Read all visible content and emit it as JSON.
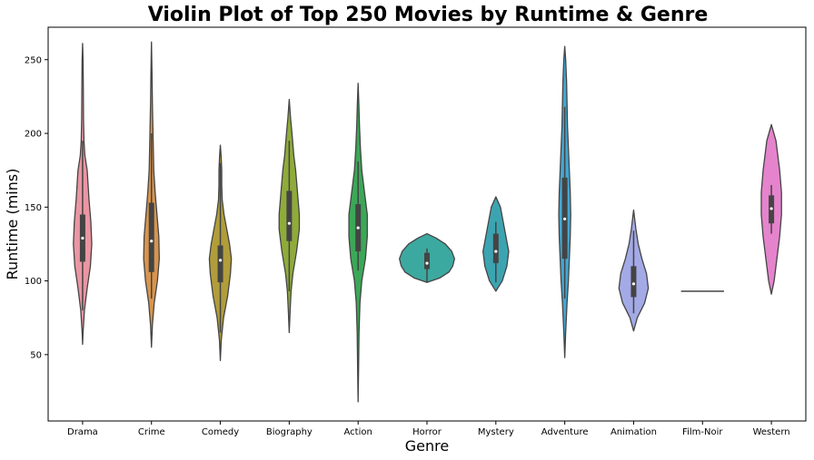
{
  "chart_data": {
    "type": "violin",
    "title": "Violin Plot of Top 250 Movies by Runtime & Genre",
    "xlabel": "Genre",
    "ylabel": "Runtime (mins)",
    "ylim": [
      5,
      272
    ],
    "yticks": [
      50,
      100,
      150,
      200,
      250
    ],
    "grid": false,
    "categories": [
      "Drama",
      "Crime",
      "Comedy",
      "Biography",
      "Action",
      "Horror",
      "Mystery",
      "Adventure",
      "Animation",
      "Film-Noir",
      "Western"
    ],
    "colors": [
      "#ea96a3",
      "#d8944e",
      "#b19d3a",
      "#8fab3b",
      "#3ba857",
      "#3ca9a0",
      "#3ca4b1",
      "#43a7d1",
      "#a3aae6",
      "#c3a2e8",
      "#e583cd"
    ],
    "violins": [
      {
        "genre": "Drama",
        "min": 57,
        "max": 261,
        "q1": 113,
        "median": 129,
        "q3": 145,
        "whisker_low": 80,
        "whisker_high": 195,
        "density": [
          [
            57,
            0
          ],
          [
            65,
            0.5
          ],
          [
            80,
            2
          ],
          [
            95,
            5
          ],
          [
            110,
            8.5
          ],
          [
            125,
            10
          ],
          [
            140,
            9
          ],
          [
            155,
            7
          ],
          [
            165,
            6
          ],
          [
            175,
            5
          ],
          [
            185,
            2.5
          ],
          [
            195,
            1.5
          ],
          [
            210,
            1
          ],
          [
            230,
            0.8
          ],
          [
            250,
            0.5
          ],
          [
            261,
            0
          ]
        ]
      },
      {
        "genre": "Crime",
        "min": 55,
        "max": 262,
        "q1": 106,
        "median": 127,
        "q3": 153,
        "whisker_low": 88,
        "whisker_high": 200,
        "density": [
          [
            55,
            0
          ],
          [
            70,
            1
          ],
          [
            85,
            3
          ],
          [
            100,
            6.5
          ],
          [
            115,
            8.5
          ],
          [
            130,
            8
          ],
          [
            145,
            6
          ],
          [
            160,
            4
          ],
          [
            175,
            2.5
          ],
          [
            190,
            2
          ],
          [
            205,
            1.5
          ],
          [
            220,
            1
          ],
          [
            240,
            0.6
          ],
          [
            262,
            0
          ]
        ]
      },
      {
        "genre": "Comedy",
        "min": 46,
        "max": 192,
        "q1": 99,
        "median": 114,
        "q3": 124,
        "whisker_low": 65,
        "whisker_high": 180,
        "density": [
          [
            46,
            0
          ],
          [
            60,
            1
          ],
          [
            75,
            3.5
          ],
          [
            90,
            8
          ],
          [
            105,
            11
          ],
          [
            115,
            12
          ],
          [
            125,
            10
          ],
          [
            135,
            7
          ],
          [
            145,
            4
          ],
          [
            155,
            2
          ],
          [
            165,
            1.5
          ],
          [
            175,
            1.5
          ],
          [
            185,
            0.8
          ],
          [
            192,
            0
          ]
        ]
      },
      {
        "genre": "Biography",
        "min": 65,
        "max": 223,
        "q1": 127,
        "median": 139,
        "q3": 161,
        "whisker_low": 93,
        "whisker_high": 195,
        "density": [
          [
            65,
            0
          ],
          [
            80,
            1
          ],
          [
            93,
            2
          ],
          [
            105,
            4
          ],
          [
            120,
            8
          ],
          [
            135,
            11
          ],
          [
            145,
            11
          ],
          [
            160,
            9
          ],
          [
            175,
            7
          ],
          [
            185,
            5
          ],
          [
            200,
            3
          ],
          [
            210,
            1.5
          ],
          [
            223,
            0
          ]
        ]
      },
      {
        "genre": "Action",
        "min": 18,
        "max": 234,
        "q1": 120,
        "median": 136,
        "q3": 152,
        "whisker_low": 107,
        "whisker_high": 181,
        "density": [
          [
            18,
            0
          ],
          [
            40,
            0.5
          ],
          [
            65,
            1
          ],
          [
            85,
            2
          ],
          [
            100,
            4
          ],
          [
            115,
            8
          ],
          [
            130,
            10
          ],
          [
            145,
            10
          ],
          [
            160,
            7
          ],
          [
            175,
            4
          ],
          [
            190,
            2.5
          ],
          [
            205,
            1.5
          ],
          [
            220,
            0.8
          ],
          [
            234,
            0
          ]
        ]
      },
      {
        "genre": "Horror",
        "min": 99,
        "max": 132,
        "q1": 108,
        "median": 112,
        "q3": 119,
        "whisker_low": 99,
        "whisker_high": 122,
        "density": [
          [
            99,
            0
          ],
          [
            102,
            14
          ],
          [
            106,
            24
          ],
          [
            110,
            28
          ],
          [
            115,
            30
          ],
          [
            120,
            27
          ],
          [
            125,
            20
          ],
          [
            129,
            10
          ],
          [
            132,
            0
          ]
        ]
      },
      {
        "genre": "Mystery",
        "min": 93,
        "max": 157,
        "q1": 112,
        "median": 120,
        "q3": 132,
        "whisker_low": 99,
        "whisker_high": 140,
        "density": [
          [
            93,
            0
          ],
          [
            100,
            7
          ],
          [
            110,
            12
          ],
          [
            120,
            14
          ],
          [
            130,
            11
          ],
          [
            140,
            8
          ],
          [
            150,
            5
          ],
          [
            157,
            0
          ]
        ]
      },
      {
        "genre": "Adventure",
        "min": 48,
        "max": 259,
        "q1": 115,
        "median": 142,
        "q3": 170,
        "whisker_low": 88,
        "whisker_high": 218,
        "density": [
          [
            48,
            0
          ],
          [
            65,
            1
          ],
          [
            85,
            2.5
          ],
          [
            100,
            4
          ],
          [
            115,
            5
          ],
          [
            130,
            6
          ],
          [
            145,
            6.5
          ],
          [
            160,
            6
          ],
          [
            175,
            5
          ],
          [
            190,
            4
          ],
          [
            205,
            3
          ],
          [
            220,
            2.5
          ],
          [
            235,
            2
          ],
          [
            250,
            1
          ],
          [
            259,
            0
          ]
        ]
      },
      {
        "genre": "Animation",
        "min": 66,
        "max": 148,
        "q1": 89,
        "median": 98,
        "q3": 110,
        "whisker_low": 78,
        "whisker_high": 134,
        "density": [
          [
            66,
            0
          ],
          [
            75,
            4
          ],
          [
            85,
            12
          ],
          [
            95,
            16
          ],
          [
            105,
            14
          ],
          [
            115,
            9
          ],
          [
            125,
            5
          ],
          [
            135,
            2.5
          ],
          [
            148,
            0
          ]
        ]
      },
      {
        "genre": "Film-Noir",
        "min": 93,
        "max": 93,
        "q1": 93,
        "median": 93,
        "q3": 93,
        "whisker_low": 93,
        "whisker_high": 93,
        "density": []
      },
      {
        "genre": "Western",
        "min": 91,
        "max": 206,
        "q1": 139,
        "median": 149,
        "q3": 158,
        "whisker_low": 132,
        "whisker_high": 165,
        "density": [
          [
            91,
            0
          ],
          [
            100,
            3
          ],
          [
            115,
            6
          ],
          [
            130,
            9
          ],
          [
            145,
            11
          ],
          [
            160,
            11
          ],
          [
            175,
            9
          ],
          [
            185,
            7
          ],
          [
            195,
            5
          ],
          [
            206,
            0
          ]
        ]
      }
    ]
  }
}
